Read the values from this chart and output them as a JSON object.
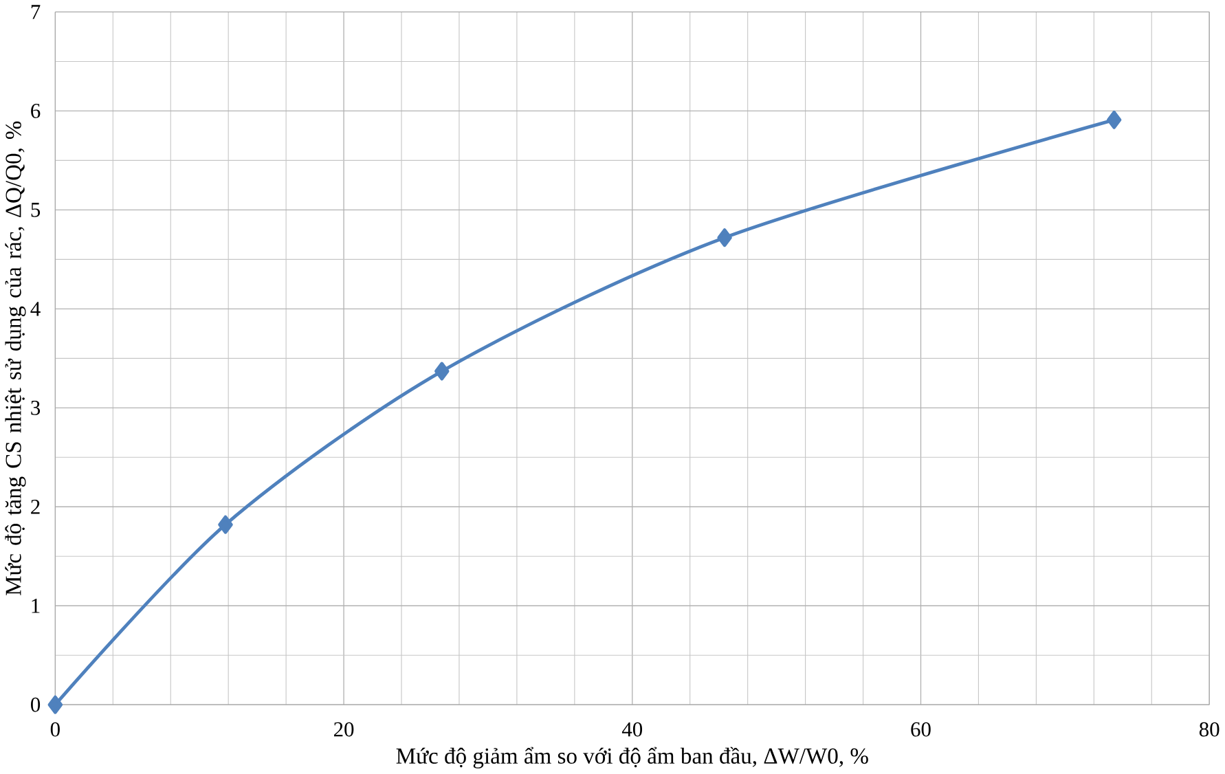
{
  "chart_data": {
    "type": "line",
    "xlabel": "Mức độ giảm ẩm so với độ ẩm ban đầu, ΔW/W0, %",
    "ylabel": "Mức độ tăng CS nhiệt sử dụng của rác, ΔQ/Q0, %",
    "x": [
      0,
      11.8,
      26.8,
      46.4,
      73.4
    ],
    "series": [
      {
        "color": "#4f81bd",
        "values": [
          0,
          1.82,
          3.37,
          4.72,
          5.91
        ]
      }
    ],
    "xlim": [
      0,
      80
    ],
    "ylim": [
      0,
      7
    ],
    "xticks": [
      0,
      20,
      40,
      60,
      80
    ],
    "yticks": [
      0,
      1,
      2,
      3,
      4,
      5,
      6,
      7
    ],
    "grid": true,
    "marker": "diamond",
    "line_style": "solid"
  }
}
